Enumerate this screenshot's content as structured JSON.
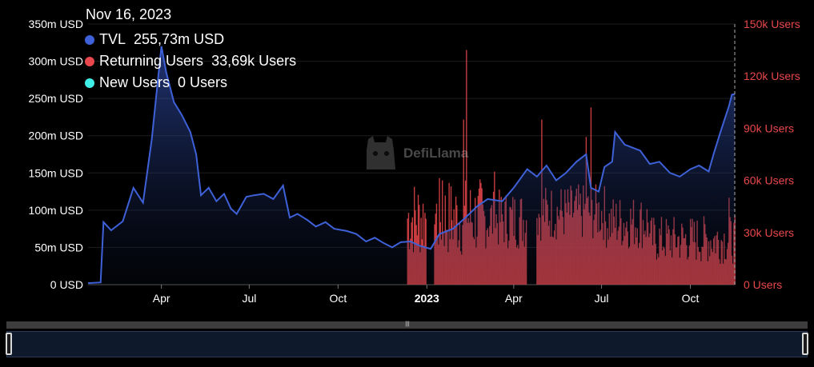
{
  "tooltip": {
    "date": "Nov 16, 2023",
    "items": [
      {
        "label": "TVL",
        "value": "255,73m USD",
        "color": "#3e61d8"
      },
      {
        "label": "Returning Users",
        "value": "33,69k Users",
        "color": "#e8474b"
      },
      {
        "label": "New Users",
        "value": "0 Users",
        "color": "#3ff0e8"
      }
    ]
  },
  "watermark": "DefiLlama",
  "chart_data": {
    "type": "line",
    "x_range": [
      "2022-01-15",
      "2023-11-16"
    ],
    "x_ticks": [
      {
        "label": "Apr",
        "date": "2022-04-01",
        "bold": false
      },
      {
        "label": "Jul",
        "date": "2022-07-01",
        "bold": false
      },
      {
        "label": "Oct",
        "date": "2022-10-01",
        "bold": false
      },
      {
        "label": "2023",
        "date": "2023-01-01",
        "bold": true
      },
      {
        "label": "Apr",
        "date": "2023-04-01",
        "bold": false
      },
      {
        "label": "Jul",
        "date": "2023-07-01",
        "bold": false
      },
      {
        "label": "Oct",
        "date": "2023-10-01",
        "bold": false
      }
    ],
    "y_left": {
      "min": 0,
      "max": 350,
      "unit": "m USD",
      "ticks": [
        "0 USD",
        "50m USD",
        "100m USD",
        "150m USD",
        "200m USD",
        "250m USD",
        "300m USD",
        "350m USD"
      ]
    },
    "y_right": {
      "min": 0,
      "max": 150,
      "unit": "k Users",
      "ticks": [
        "0 Users",
        "30k Users",
        "60k Users",
        "90k Users",
        "120k Users",
        "150k Users"
      ]
    },
    "series": [
      {
        "name": "TVL",
        "kind": "area-line",
        "axis": "left",
        "color": "#3e61d8",
        "points": [
          [
            "2022-01-15",
            2
          ],
          [
            "2022-01-28",
            3
          ],
          [
            "2022-01-31",
            84
          ],
          [
            "2022-02-08",
            73
          ],
          [
            "2022-02-20",
            85
          ],
          [
            "2022-03-03",
            130
          ],
          [
            "2022-03-13",
            110
          ],
          [
            "2022-03-22",
            195
          ],
          [
            "2022-03-28",
            270
          ],
          [
            "2022-04-01",
            320
          ],
          [
            "2022-04-06",
            285
          ],
          [
            "2022-04-14",
            245
          ],
          [
            "2022-04-22",
            228
          ],
          [
            "2022-05-01",
            205
          ],
          [
            "2022-05-07",
            175
          ],
          [
            "2022-05-12",
            120
          ],
          [
            "2022-05-20",
            130
          ],
          [
            "2022-05-28",
            112
          ],
          [
            "2022-06-05",
            122
          ],
          [
            "2022-06-12",
            102
          ],
          [
            "2022-06-18",
            95
          ],
          [
            "2022-06-28",
            118
          ],
          [
            "2022-07-06",
            120
          ],
          [
            "2022-07-16",
            122
          ],
          [
            "2022-07-26",
            115
          ],
          [
            "2022-08-05",
            133
          ],
          [
            "2022-08-12",
            90
          ],
          [
            "2022-08-20",
            95
          ],
          [
            "2022-08-30",
            87
          ],
          [
            "2022-09-08",
            78
          ],
          [
            "2022-09-18",
            84
          ],
          [
            "2022-09-27",
            75
          ],
          [
            "2022-10-10",
            72
          ],
          [
            "2022-10-20",
            68
          ],
          [
            "2022-10-30",
            58
          ],
          [
            "2022-11-08",
            63
          ],
          [
            "2022-11-17",
            56
          ],
          [
            "2022-11-26",
            50
          ],
          [
            "2022-12-05",
            57
          ],
          [
            "2022-12-15",
            58
          ],
          [
            "2022-12-25",
            52
          ],
          [
            "2023-01-05",
            48
          ],
          [
            "2023-01-14",
            68
          ],
          [
            "2023-01-28",
            75
          ],
          [
            "2023-02-10",
            90
          ],
          [
            "2023-02-22",
            105
          ],
          [
            "2023-03-05",
            115
          ],
          [
            "2023-03-20",
            112
          ],
          [
            "2023-04-01",
            130
          ],
          [
            "2023-04-15",
            155
          ],
          [
            "2023-04-25",
            145
          ],
          [
            "2023-05-05",
            160
          ],
          [
            "2023-05-15",
            140
          ],
          [
            "2023-05-25",
            150
          ],
          [
            "2023-06-05",
            165
          ],
          [
            "2023-06-15",
            175
          ],
          [
            "2023-06-20",
            130
          ],
          [
            "2023-06-28",
            125
          ],
          [
            "2023-07-04",
            158
          ],
          [
            "2023-07-12",
            165
          ],
          [
            "2023-07-15",
            205
          ],
          [
            "2023-07-25",
            188
          ],
          [
            "2023-08-10",
            180
          ],
          [
            "2023-08-20",
            162
          ],
          [
            "2023-08-30",
            165
          ],
          [
            "2023-09-10",
            150
          ],
          [
            "2023-09-20",
            145
          ],
          [
            "2023-10-01",
            155
          ],
          [
            "2023-10-10",
            160
          ],
          [
            "2023-10-20",
            152
          ],
          [
            "2023-10-25",
            175
          ],
          [
            "2023-10-31",
            200
          ],
          [
            "2023-11-05",
            220
          ],
          [
            "2023-11-10",
            240
          ],
          [
            "2023-11-13",
            255
          ],
          [
            "2023-11-16",
            256
          ]
        ]
      },
      {
        "name": "Returning Users",
        "kind": "bar",
        "axis": "right",
        "color": "#e8474b",
        "start": "2022-12-12",
        "end": "2023-11-16",
        "segments": [
          {
            "from": "2022-12-12",
            "to": "2023-01-01",
            "range": [
              15,
              62
            ]
          },
          {
            "from": "2023-01-01",
            "to": "2023-01-09",
            "range": [
              0,
              0
            ]
          },
          {
            "from": "2023-01-09",
            "to": "2023-02-28",
            "range": [
              15,
              62
            ]
          },
          {
            "from": "2023-02-28",
            "to": "2023-04-15",
            "range": [
              20,
              55
            ]
          },
          {
            "from": "2023-04-15",
            "to": "2023-04-25",
            "range": [
              0,
              0
            ]
          },
          {
            "from": "2023-04-25",
            "to": "2023-07-05",
            "range": [
              25,
              58
            ]
          },
          {
            "from": "2023-07-05",
            "to": "2023-08-20",
            "range": [
              20,
              52
            ]
          },
          {
            "from": "2023-08-20",
            "to": "2023-11-16",
            "range": [
              12,
              40
            ]
          }
        ],
        "peaks": [
          [
            "2023-02-11",
            135
          ],
          [
            "2023-02-08",
            95
          ],
          [
            "2023-04-30",
            95
          ],
          [
            "2023-06-20",
            102
          ],
          [
            "2023-06-15",
            85
          ],
          [
            "2023-03-12",
            65
          ],
          [
            "2023-11-10",
            50
          ],
          [
            "2023-01-17",
            60
          ]
        ]
      },
      {
        "name": "New Users",
        "kind": "bar",
        "axis": "right",
        "color": "#3ff0e8",
        "points": []
      }
    ]
  }
}
